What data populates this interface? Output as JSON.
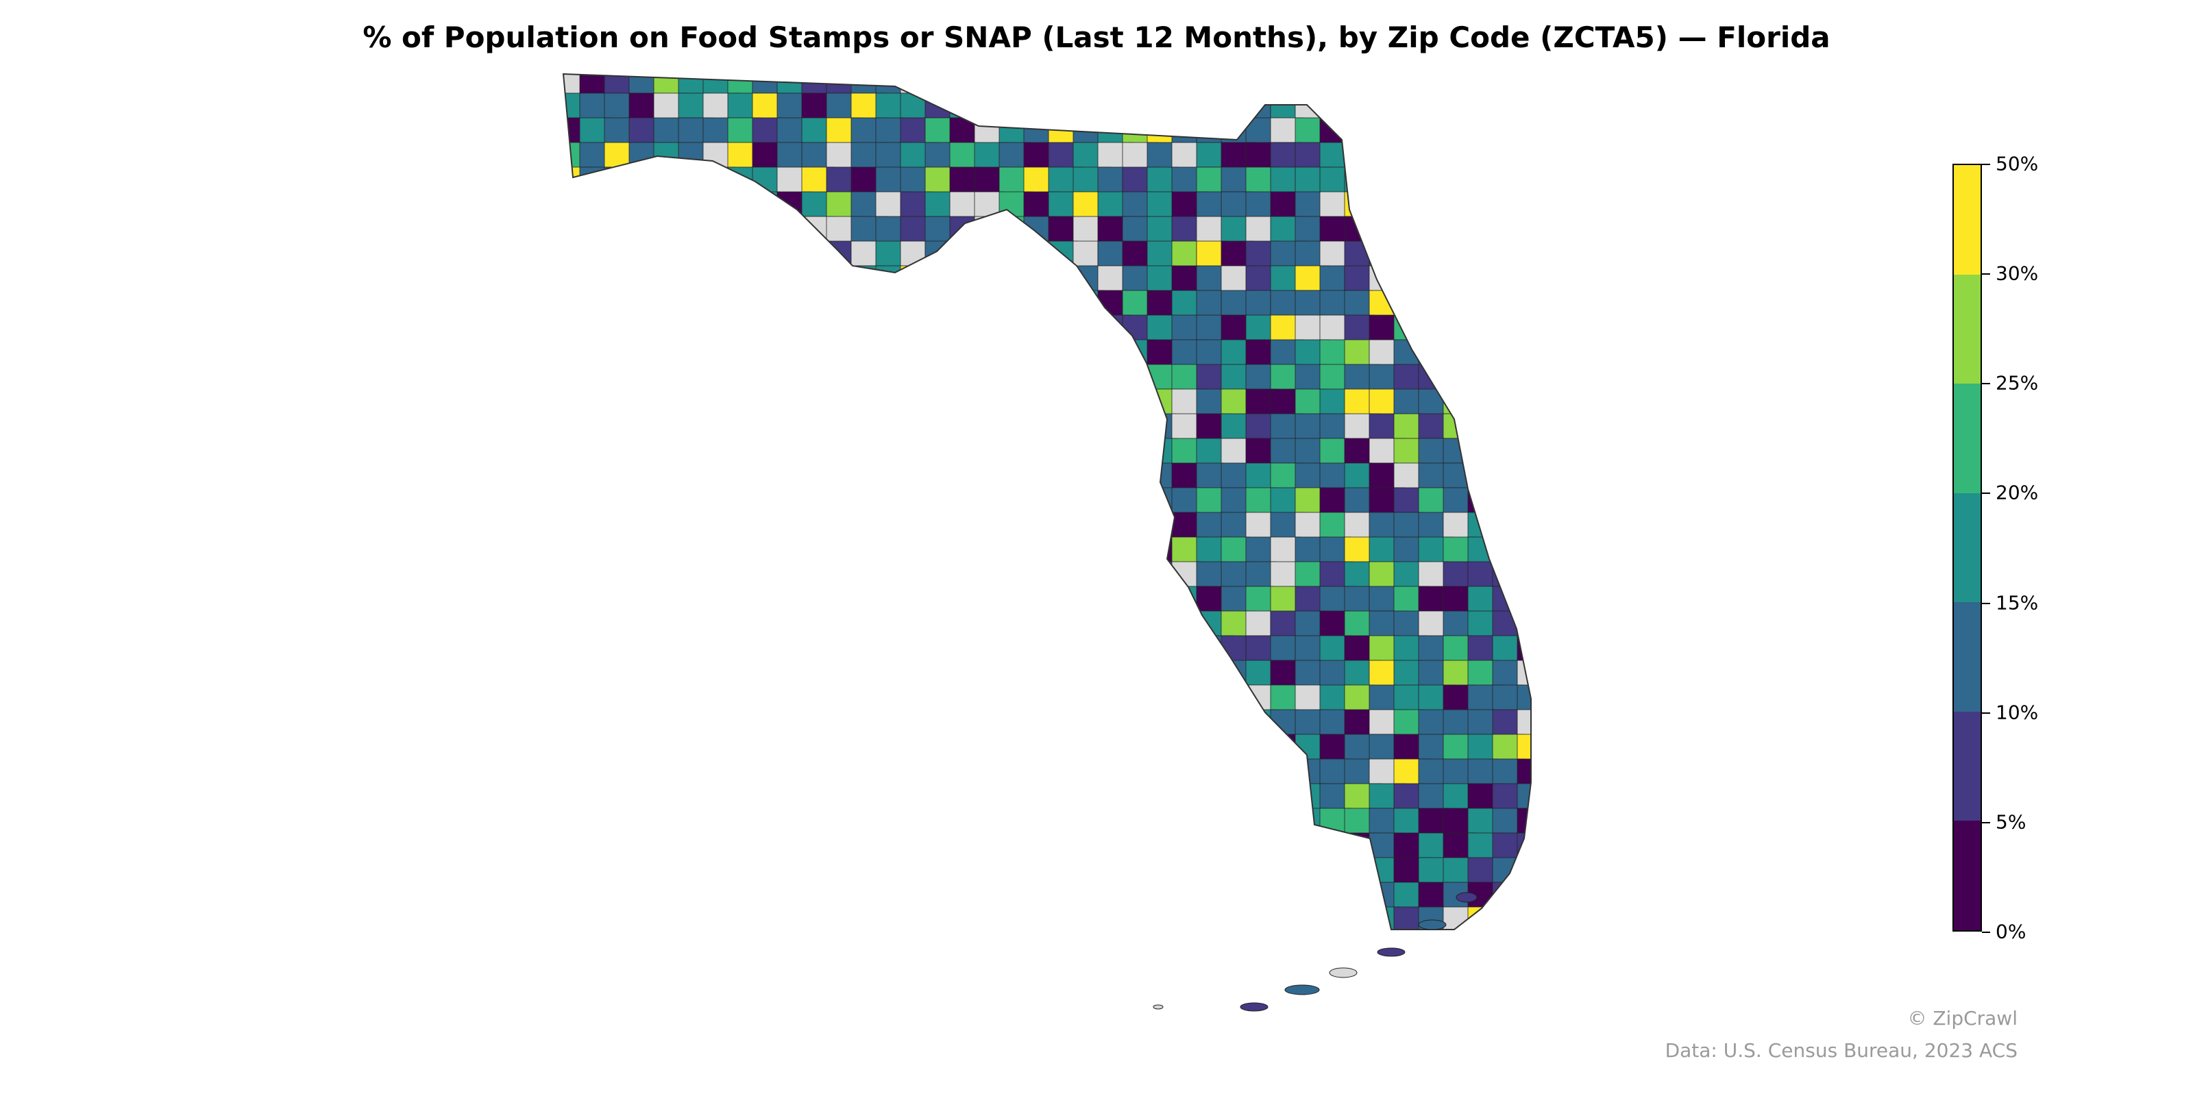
{
  "title": "% of Population on Food Stamps or SNAP (Last 12 Months), by Zip Code (ZCTA5) — Florida",
  "colorbar": {
    "ticks": [
      "0%",
      "5%",
      "10%",
      "15%",
      "20%",
      "25%",
      "30%",
      "50%"
    ],
    "bins": [
      {
        "range": "0–5%",
        "color": "#440154"
      },
      {
        "range": "5–10%",
        "color": "#443983"
      },
      {
        "range": "10–15%",
        "color": "#31688e"
      },
      {
        "range": "15–20%",
        "color": "#21918c"
      },
      {
        "range": "20–25%",
        "color": "#35b779"
      },
      {
        "range": "25–30%",
        "color": "#90d743"
      },
      {
        "range": "30–50%",
        "color": "#fde725"
      }
    ],
    "no_data_color": "#d9d9d9"
  },
  "credits": {
    "copyright": "© ZipCrawl",
    "source": "Data: U.S. Census Bureau, 2023 ACS"
  }
}
